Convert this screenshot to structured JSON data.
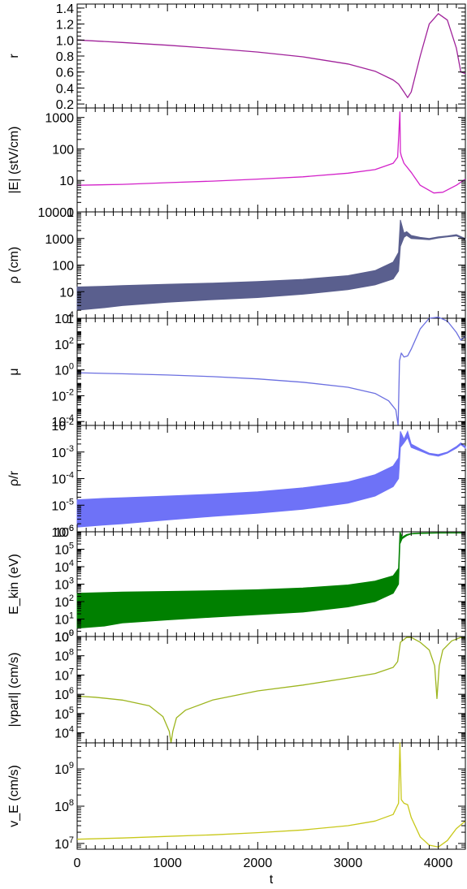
{
  "chart_data": [
    {
      "type": "line",
      "ylabel": "r",
      "color": "#A0229A",
      "scale": "linear",
      "ylim": [
        0.15,
        1.45
      ],
      "yticks": [
        {
          "v": 0.2,
          "label": "0.2"
        },
        {
          "v": 0.4,
          "label": "0.4"
        },
        {
          "v": 0.6,
          "label": "0.6"
        },
        {
          "v": 0.8,
          "label": "0.8"
        },
        {
          "v": 1.0,
          "label": "1.0"
        },
        {
          "v": 1.2,
          "label": "1.2"
        },
        {
          "v": 1.4,
          "label": "1.4"
        }
      ],
      "x": [
        0,
        500,
        1000,
        1500,
        2000,
        2500,
        3000,
        3300,
        3500,
        3560,
        3620,
        3660,
        3700,
        3800,
        3900,
        4000,
        4100,
        4200,
        4250,
        4300
      ],
      "y": [
        1.0,
        0.97,
        0.935,
        0.895,
        0.85,
        0.79,
        0.7,
        0.61,
        0.5,
        0.45,
        0.35,
        0.28,
        0.35,
        0.8,
        1.2,
        1.33,
        1.25,
        0.9,
        0.6,
        0.58
      ]
    },
    {
      "type": "line",
      "ylabel": "|E| (stV/cm)",
      "color": "#D321C9",
      "scale": "log",
      "ylim": [
        1,
        2000
      ],
      "yticks": [
        {
          "v": 1,
          "label": "1"
        },
        {
          "v": 10,
          "label": "10"
        },
        {
          "v": 100,
          "label": "100"
        },
        {
          "v": 1000,
          "label": "1000"
        }
      ],
      "x": [
        0,
        500,
        1000,
        1500,
        2000,
        2500,
        3000,
        3300,
        3500,
        3550,
        3575,
        3580,
        3590,
        3620,
        3700,
        3800,
        3950,
        4050,
        4200,
        4300
      ],
      "y": [
        7,
        7.5,
        8.5,
        9.5,
        11,
        13,
        17,
        22,
        35,
        55,
        1500,
        80,
        60,
        35,
        18,
        7,
        4,
        4.2,
        7,
        11
      ]
    },
    {
      "type": "area",
      "ylabel": "ρ (cm)",
      "color": "#5A5F8E",
      "scale": "log",
      "ylim": [
        1,
        10000
      ],
      "yticks": [
        {
          "v": 1,
          "label": "1"
        },
        {
          "v": 10,
          "label": "10"
        },
        {
          "v": 100,
          "label": "100"
        },
        {
          "v": 1000,
          "label": "1000"
        },
        {
          "v": 10000,
          "label": "10000"
        }
      ],
      "x": [
        0,
        300,
        500,
        1000,
        1500,
        2000,
        2500,
        3000,
        3300,
        3500,
        3560,
        3580,
        3620,
        3650,
        3700,
        3800,
        3900,
        4000,
        4100,
        4200,
        4300
      ],
      "y_high": [
        15,
        16,
        17,
        19,
        21,
        24,
        29,
        40,
        62,
        130,
        300,
        5000,
        1600,
        1800,
        1300,
        1100,
        1000,
        1150,
        1250,
        1400,
        1000
      ],
      "y_low": [
        2,
        2.5,
        3,
        4,
        5,
        6,
        8,
        12,
        18,
        30,
        60,
        500,
        1100,
        1300,
        1000,
        950,
        900,
        1050,
        1150,
        1250,
        900
      ]
    },
    {
      "type": "line",
      "ylabel": "μ",
      "color": "#6B6FE0",
      "scale": "log",
      "ylim": [
        5e-05,
        10000
      ],
      "yticks": [
        {
          "v": 0.0001,
          "base": "10",
          "exp": "-4"
        },
        {
          "v": 0.01,
          "base": "10",
          "exp": "-2"
        },
        {
          "v": 1,
          "base": "10",
          "exp": "0"
        },
        {
          "v": 100,
          "base": "10",
          "exp": "2"
        },
        {
          "v": 10000,
          "base": "10",
          "exp": "4"
        }
      ],
      "x": [
        0,
        500,
        1000,
        1500,
        2000,
        2500,
        3000,
        3300,
        3450,
        3530,
        3555,
        3570,
        3590,
        3620,
        3660,
        3700,
        3800,
        3900,
        4000,
        4100,
        4200,
        4250,
        4300
      ],
      "y": [
        0.6,
        0.5,
        0.4,
        0.3,
        0.2,
        0.11,
        0.045,
        0.015,
        0.004,
        0.0008,
        5e-05,
        5,
        20,
        10,
        12,
        40,
        1500,
        10000,
        12000,
        6000,
        800,
        200,
        400
      ]
    },
    {
      "type": "area",
      "ylabel": "ρ/r",
      "color": "#6E72F7",
      "scale": "log",
      "ylim": [
        1e-06,
        0.01
      ],
      "yticks": [
        {
          "v": 1e-06,
          "base": "10",
          "exp": "-6"
        },
        {
          "v": 1e-05,
          "base": "10",
          "exp": "-5"
        },
        {
          "v": 0.0001,
          "base": "10",
          "exp": "-4"
        },
        {
          "v": 0.001,
          "base": "10",
          "exp": "-3"
        },
        {
          "v": 0.01,
          "base": "10",
          "exp": "-2"
        }
      ],
      "x": [
        0,
        300,
        500,
        1000,
        1500,
        2000,
        2500,
        3000,
        3300,
        3500,
        3560,
        3580,
        3620,
        3660,
        3700,
        3800,
        3900,
        4000,
        4100,
        4200,
        4250,
        4300
      ],
      "y_high": [
        1.6e-05,
        1.8e-05,
        1.9e-05,
        2.2e-05,
        2.6e-05,
        3.2e-05,
        4.5e-05,
        7.5e-05,
        0.00014,
        0.0003,
        0.0006,
        0.006,
        0.003,
        0.006,
        0.002,
        0.0013,
        0.0009,
        0.0008,
        0.001,
        0.0016,
        0.0022,
        0.0016
      ],
      "y_low": [
        1.5e-06,
        1.8e-06,
        2e-06,
        2.8e-06,
        3.8e-06,
        5e-06,
        7e-06,
        1.2e-05,
        2.2e-05,
        5e-05,
        0.0001,
        0.0015,
        0.0022,
        0.0035,
        0.0015,
        0.0011,
        0.0008,
        0.0007,
        0.0009,
        0.0014,
        0.0019,
        0.0014
      ]
    },
    {
      "type": "area",
      "ylabel": "E_kin (eV)",
      "color": "#008000",
      "scale": "log",
      "ylim": [
        1,
        1000000
      ],
      "yticks": [
        {
          "v": 1,
          "base": "10",
          "exp": "0"
        },
        {
          "v": 10,
          "base": "10",
          "exp": "1"
        },
        {
          "v": 100,
          "base": "10",
          "exp": "2"
        },
        {
          "v": 1000,
          "base": "10",
          "exp": "3"
        },
        {
          "v": 10000,
          "base": "10",
          "exp": "4"
        },
        {
          "v": 100000,
          "base": "10",
          "exp": "5"
        },
        {
          "v": 1000000,
          "base": "10",
          "exp": "6"
        }
      ],
      "x": [
        0,
        300,
        500,
        1000,
        1500,
        2000,
        2500,
        3000,
        3300,
        3500,
        3560,
        3575,
        3600,
        3650,
        3700,
        3800,
        4000,
        4300
      ],
      "y_high": [
        300,
        330,
        350,
        380,
        420,
        480,
        600,
        900,
        1500,
        3000,
        8000,
        1000000,
        500000,
        700000,
        800000,
        850000,
        870000,
        880000
      ],
      "y_low": [
        3,
        4,
        6,
        9,
        13,
        18,
        25,
        50,
        100,
        300,
        1000,
        200000,
        400000,
        600000,
        750000,
        800000,
        840000,
        850000
      ]
    },
    {
      "type": "line",
      "ylabel": "|vparl| (cm/s)",
      "color": "#9DB51E",
      "scale": "log",
      "ylim": [
        3000,
        1000000000
      ],
      "yticks": [
        {
          "v": 10000,
          "base": "10",
          "exp": "4"
        },
        {
          "v": 100000,
          "base": "10",
          "exp": "5"
        },
        {
          "v": 1000000,
          "base": "10",
          "exp": "6"
        },
        {
          "v": 10000000,
          "base": "10",
          "exp": "7"
        },
        {
          "v": 100000000,
          "base": "10",
          "exp": "8"
        },
        {
          "v": 1000000000,
          "base": "10",
          "exp": "9"
        }
      ],
      "x": [
        0,
        200,
        500,
        800,
        950,
        1020,
        1040,
        1060,
        1100,
        1200,
        1500,
        2000,
        2500,
        3000,
        3300,
        3500,
        3550,
        3580,
        3650,
        3700,
        3800,
        3900,
        3960,
        3985,
        4010,
        4050,
        4150,
        4250,
        4300
      ],
      "y": [
        800000,
        700000,
        500000,
        250000,
        70000,
        12000,
        3000,
        12000,
        60000,
        150000,
        500000,
        1500000,
        3000000,
        7000000,
        12000000,
        25000000,
        50000000,
        500000000,
        900000000,
        900000000,
        500000000,
        200000000,
        30000000,
        600000,
        30000000,
        200000000,
        600000000,
        900000000,
        850000000
      ]
    },
    {
      "type": "line",
      "ylabel": "v_E (cm/s)",
      "color": "#C8C81A",
      "scale": "log",
      "ylim": [
        7000000,
        5000000000
      ],
      "yticks": [
        {
          "v": 10000000,
          "base": "10",
          "exp": "7"
        },
        {
          "v": 100000000,
          "base": "10",
          "exp": "8"
        },
        {
          "v": 1000000000,
          "base": "10",
          "exp": "9"
        }
      ],
      "x": [
        0,
        500,
        1000,
        1500,
        2000,
        2500,
        3000,
        3300,
        3500,
        3560,
        3575,
        3590,
        3620,
        3660,
        3700,
        3800,
        3900,
        4000,
        4100,
        4200,
        4300
      ],
      "y": [
        13000000,
        14000000,
        15500000,
        17000000,
        19500000,
        23000000,
        30000000,
        40000000,
        60000000,
        120000000,
        5000000000,
        150000000,
        120000000,
        110000000,
        50000000,
        15000000,
        9000000,
        8000000,
        12000000,
        25000000,
        40000000
      ]
    }
  ],
  "xaxis": {
    "label": "t",
    "xlim": [
      0,
      4300
    ],
    "ticks": [
      {
        "v": 0,
        "label": "0"
      },
      {
        "v": 1000,
        "label": "1000"
      },
      {
        "v": 2000,
        "label": "2000"
      },
      {
        "v": 3000,
        "label": "3000"
      },
      {
        "v": 4000,
        "label": "4000"
      }
    ]
  }
}
